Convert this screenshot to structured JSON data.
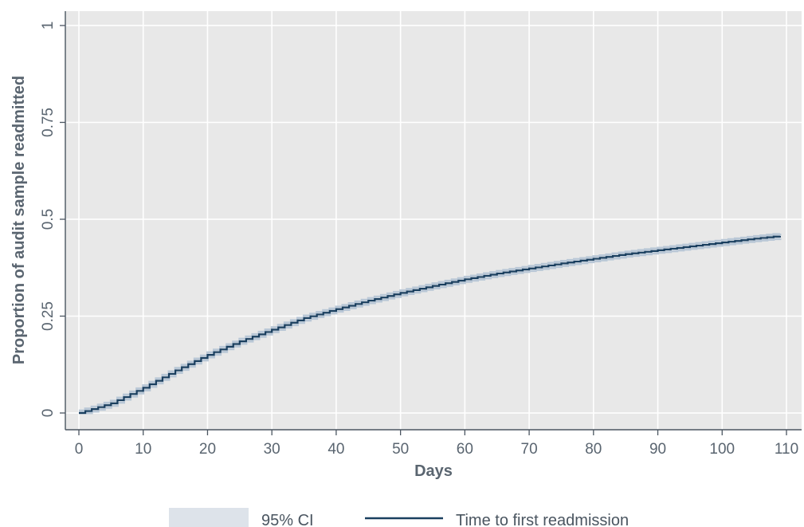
{
  "chart_data": {
    "type": "line",
    "xlabel": "Days",
    "ylabel": "Proportion of audit sample readmitted",
    "xlim": [
      0,
      110
    ],
    "ylim": [
      0,
      1
    ],
    "x_ticks": [
      "0",
      "10",
      "20",
      "30",
      "40",
      "50",
      "60",
      "70",
      "80",
      "90",
      "100",
      "110"
    ],
    "y_ticks": [
      "0",
      "0.25",
      "0.5",
      "0.75",
      "1"
    ],
    "grid": true,
    "legend_position": "bottom",
    "series": [
      {
        "name": "Time to first readmission",
        "step": true,
        "x": [
          0,
          5,
          10,
          15,
          20,
          25,
          30,
          35,
          40,
          45,
          50,
          55,
          60,
          65,
          70,
          75,
          80,
          85,
          90,
          95,
          100,
          105,
          109
        ],
        "y": [
          0,
          0.025,
          0.065,
          0.11,
          0.15,
          0.185,
          0.215,
          0.245,
          0.268,
          0.29,
          0.31,
          0.328,
          0.345,
          0.36,
          0.373,
          0.386,
          0.398,
          0.41,
          0.42,
          0.43,
          0.44,
          0.45,
          0.457
        ]
      }
    ],
    "ci_band": {
      "name": "95% CI",
      "halfwidth": 0.006
    },
    "colors": {
      "plot_background": "#e8e8e8",
      "grid": "#ffffff",
      "line": "#1a3f5f",
      "ci_fill": "#b9c7d6",
      "legend_ci_swatch": "#dde3ea",
      "axis": "#4a5560"
    }
  }
}
